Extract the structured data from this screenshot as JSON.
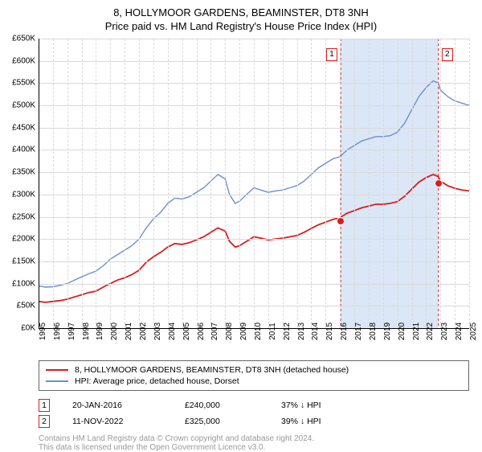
{
  "title_line1": "8, HOLLYMOOR GARDENS, BEAMINSTER, DT8 3NH",
  "title_line2": "Price paid vs. HM Land Registry's House Price Index (HPI)",
  "chart": {
    "type": "line",
    "background_color": "#ffffff",
    "grid_color": "#d9d9d9",
    "axis_color": "#000000",
    "ylim": [
      0,
      650
    ],
    "ytick_step": 50,
    "y_prefix": "£",
    "y_suffix": "K",
    "xlim": [
      1995,
      2025
    ],
    "xtick_step": 1,
    "label_fontsize": 10,
    "shade_color": "#dbe7f6",
    "shade_start": 2016.05,
    "shade_end": 2022.86,
    "series": [
      {
        "name": "hpi",
        "label": "HPI: Average price, detached house, Dorset",
        "color": "#6a8fd4",
        "line_width": 1.4,
        "points": [
          [
            1995,
            95
          ],
          [
            1995.5,
            92
          ],
          [
            1996,
            93
          ],
          [
            1996.5,
            96
          ],
          [
            1997,
            100
          ],
          [
            1997.5,
            108
          ],
          [
            1998,
            115
          ],
          [
            1998.5,
            122
          ],
          [
            1999,
            128
          ],
          [
            1999.5,
            140
          ],
          [
            2000,
            155
          ],
          [
            2000.5,
            165
          ],
          [
            2001,
            175
          ],
          [
            2001.5,
            185
          ],
          [
            2002,
            200
          ],
          [
            2002.5,
            225
          ],
          [
            2003,
            245
          ],
          [
            2003.5,
            260
          ],
          [
            2004,
            280
          ],
          [
            2004.5,
            292
          ],
          [
            2005,
            290
          ],
          [
            2005.5,
            295
          ],
          [
            2006,
            305
          ],
          [
            2006.5,
            315
          ],
          [
            2007,
            330
          ],
          [
            2007.5,
            345
          ],
          [
            2008,
            335
          ],
          [
            2008.3,
            300
          ],
          [
            2008.7,
            280
          ],
          [
            2009,
            285
          ],
          [
            2009.5,
            300
          ],
          [
            2010,
            315
          ],
          [
            2010.5,
            310
          ],
          [
            2011,
            305
          ],
          [
            2011.5,
            308
          ],
          [
            2012,
            310
          ],
          [
            2012.5,
            315
          ],
          [
            2013,
            320
          ],
          [
            2013.5,
            330
          ],
          [
            2014,
            345
          ],
          [
            2014.5,
            360
          ],
          [
            2015,
            370
          ],
          [
            2015.5,
            380
          ],
          [
            2016,
            385
          ],
          [
            2016.5,
            400
          ],
          [
            2017,
            410
          ],
          [
            2017.5,
            420
          ],
          [
            2018,
            425
          ],
          [
            2018.5,
            430
          ],
          [
            2019,
            430
          ],
          [
            2019.5,
            432
          ],
          [
            2020,
            440
          ],
          [
            2020.5,
            460
          ],
          [
            2021,
            490
          ],
          [
            2021.5,
            520
          ],
          [
            2022,
            540
          ],
          [
            2022.5,
            555
          ],
          [
            2022.86,
            550
          ],
          [
            2023,
            535
          ],
          [
            2023.5,
            520
          ],
          [
            2024,
            510
          ],
          [
            2024.5,
            505
          ],
          [
            2025,
            500
          ]
        ]
      },
      {
        "name": "property",
        "label": "8, HOLLYMOOR GARDENS, BEAMINSTER, DT8 3NH (detached house)",
        "color": "#d91c1c",
        "line_width": 1.8,
        "points": [
          [
            1995,
            60
          ],
          [
            1995.5,
            58
          ],
          [
            1996,
            60
          ],
          [
            1996.5,
            62
          ],
          [
            1997,
            65
          ],
          [
            1997.5,
            70
          ],
          [
            1998,
            75
          ],
          [
            1998.5,
            80
          ],
          [
            1999,
            83
          ],
          [
            1999.5,
            92
          ],
          [
            2000,
            100
          ],
          [
            2000.5,
            108
          ],
          [
            2001,
            113
          ],
          [
            2001.5,
            120
          ],
          [
            2002,
            130
          ],
          [
            2002.5,
            148
          ],
          [
            2003,
            160
          ],
          [
            2003.5,
            170
          ],
          [
            2004,
            182
          ],
          [
            2004.5,
            190
          ],
          [
            2005,
            188
          ],
          [
            2005.5,
            192
          ],
          [
            2006,
            198
          ],
          [
            2006.5,
            205
          ],
          [
            2007,
            215
          ],
          [
            2007.5,
            225
          ],
          [
            2008,
            218
          ],
          [
            2008.3,
            195
          ],
          [
            2008.7,
            182
          ],
          [
            2009,
            185
          ],
          [
            2009.5,
            195
          ],
          [
            2010,
            205
          ],
          [
            2010.5,
            202
          ],
          [
            2011,
            198
          ],
          [
            2011.5,
            200
          ],
          [
            2012,
            202
          ],
          [
            2012.5,
            205
          ],
          [
            2013,
            208
          ],
          [
            2013.5,
            215
          ],
          [
            2014,
            224
          ],
          [
            2014.5,
            232
          ],
          [
            2015,
            238
          ],
          [
            2015.5,
            244
          ],
          [
            2016,
            248
          ],
          [
            2016.5,
            258
          ],
          [
            2017,
            264
          ],
          [
            2017.5,
            270
          ],
          [
            2018,
            274
          ],
          [
            2018.5,
            278
          ],
          [
            2019,
            278
          ],
          [
            2019.5,
            280
          ],
          [
            2020,
            284
          ],
          [
            2020.5,
            296
          ],
          [
            2021,
            312
          ],
          [
            2021.5,
            328
          ],
          [
            2022,
            338
          ],
          [
            2022.5,
            345
          ],
          [
            2022.86,
            340
          ],
          [
            2023,
            330
          ],
          [
            2023.5,
            320
          ],
          [
            2024,
            314
          ],
          [
            2024.5,
            310
          ],
          [
            2025,
            308
          ]
        ]
      }
    ],
    "sale_markers": [
      {
        "num": "1",
        "x": 2016.05,
        "y": 240,
        "box_color": "#d91c1c"
      },
      {
        "num": "2",
        "x": 2022.86,
        "y": 325,
        "box_color": "#d91c1c"
      }
    ],
    "dot_fill": "#d91c1c",
    "dot_stroke": "#ffffff"
  },
  "legend": {
    "border_color": "#666666"
  },
  "sales": [
    {
      "num": "1",
      "date": "20-JAN-2016",
      "price": "£240,000",
      "diff": "37% ↓ HPI",
      "box_color": "#d91c1c"
    },
    {
      "num": "2",
      "date": "11-NOV-2022",
      "price": "£325,000",
      "diff": "39% ↓ HPI",
      "box_color": "#d91c1c"
    }
  ],
  "footer_line1": "Contains HM Land Registry data © Crown copyright and database right 2024.",
  "footer_line2": "This data is licensed under the Open Government Licence v3.0.",
  "footer_color": "#999999"
}
